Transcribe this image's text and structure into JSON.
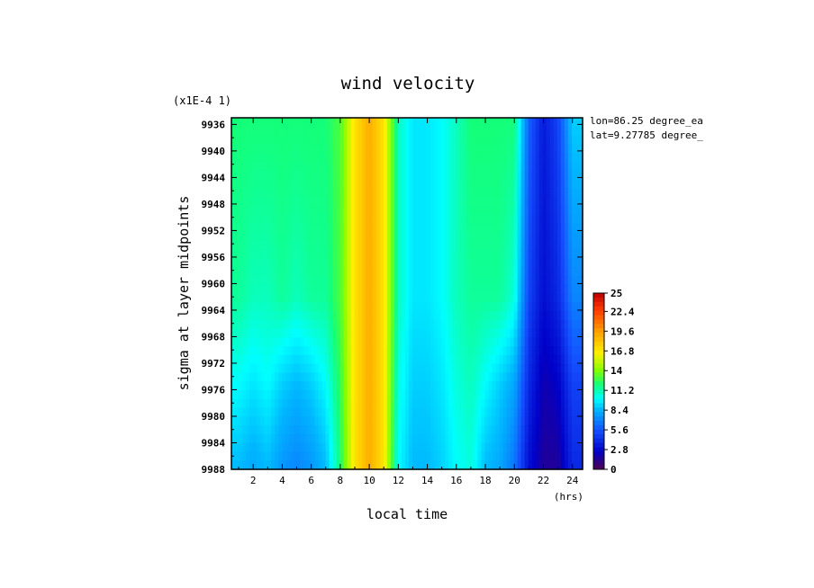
{
  "chart_data": {
    "type": "heatmap",
    "title": "wind velocity",
    "xlabel": "local time",
    "xunit": "(hrs)",
    "ylabel": "sigma at layer midpoints",
    "yscale_note": "(x1E-4 1)",
    "annotations": [
      "lon=86.25 degree_ea",
      "lat=9.27785 degree_"
    ],
    "x": [
      1,
      2,
      3,
      4,
      5,
      6,
      7,
      8,
      9,
      10,
      11,
      12,
      13,
      14,
      15,
      16,
      17,
      18,
      19,
      20,
      21,
      22,
      23,
      24
    ],
    "xlim": [
      0.5,
      24.7
    ],
    "ylim": [
      9935,
      9988
    ],
    "y_inverted": true,
    "x_ticks": [
      "2",
      "4",
      "6",
      "8",
      "10",
      "12",
      "14",
      "16",
      "18",
      "20",
      "22",
      "24"
    ],
    "y_ticks": [
      "9936",
      "9940",
      "9944",
      "9948",
      "9952",
      "9956",
      "9960",
      "9964",
      "9968",
      "9972",
      "9976",
      "9980",
      "9984",
      "9988"
    ],
    "y_levels": [
      9935,
      9962,
      9975,
      9988
    ],
    "z": [
      [
        12,
        12,
        12,
        12,
        12,
        12,
        12,
        13,
        17,
        19,
        17,
        11,
        9.5,
        9.5,
        10,
        11,
        12,
        12,
        12,
        12,
        6,
        3.5,
        5,
        9
      ],
      [
        11.5,
        11,
        11,
        11.5,
        11,
        11.5,
        11.5,
        13,
        17,
        19,
        17,
        11,
        9.5,
        9.5,
        10,
        11,
        11.5,
        11.5,
        11.5,
        10.5,
        5,
        3,
        4,
        7
      ],
      [
        10,
        9.5,
        10,
        9,
        8.5,
        9,
        10,
        12.5,
        17,
        19,
        17,
        10.5,
        9,
        9,
        9.5,
        10.5,
        11,
        10,
        9,
        8,
        4,
        2,
        2.5,
        5
      ],
      [
        8.5,
        8,
        8.5,
        7.5,
        7,
        7.5,
        8.5,
        12,
        17,
        19,
        17,
        10,
        8.5,
        8.5,
        9,
        10,
        10.5,
        8.5,
        8,
        6.5,
        3,
        1.5,
        1.5,
        4
      ]
    ],
    "colorbar": {
      "min": 0,
      "max": 25,
      "tick_labels": [
        "25",
        "22.4",
        "19.6",
        "16.8",
        "14",
        "11.2",
        "8.4",
        "5.6",
        "2.8",
        "0"
      ]
    }
  }
}
